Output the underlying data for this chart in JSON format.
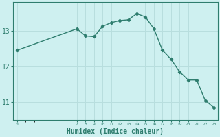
{
  "x": [
    0,
    7,
    8,
    9,
    10,
    11,
    12,
    13,
    14,
    15,
    16,
    17,
    18,
    19,
    20,
    21,
    22,
    23
  ],
  "y": [
    12.45,
    13.05,
    12.85,
    12.83,
    13.12,
    13.22,
    13.28,
    13.3,
    13.47,
    13.38,
    13.05,
    12.45,
    12.2,
    11.85,
    11.62,
    11.62,
    11.05,
    10.85
  ],
  "line_color": "#2e7d6e",
  "marker_color": "#2e7d6e",
  "bg_color": "#cef0f0",
  "grid_color": "#b8dede",
  "axis_color": "#2e7d6e",
  "xlabel": "Humidex (Indice chaleur)",
  "xlabel_fontsize": 7,
  "tick_labels": [
    "0",
    "7",
    "8",
    "9",
    "10",
    "11",
    "12",
    "13",
    "14",
    "15",
    "16",
    "17",
    "18",
    "19",
    "20",
    "21",
    "22",
    "23"
  ],
  "yticks": [
    11,
    12,
    13
  ],
  "ylim": [
    10.5,
    13.8
  ],
  "xlim": [
    -0.5,
    23.5
  ]
}
